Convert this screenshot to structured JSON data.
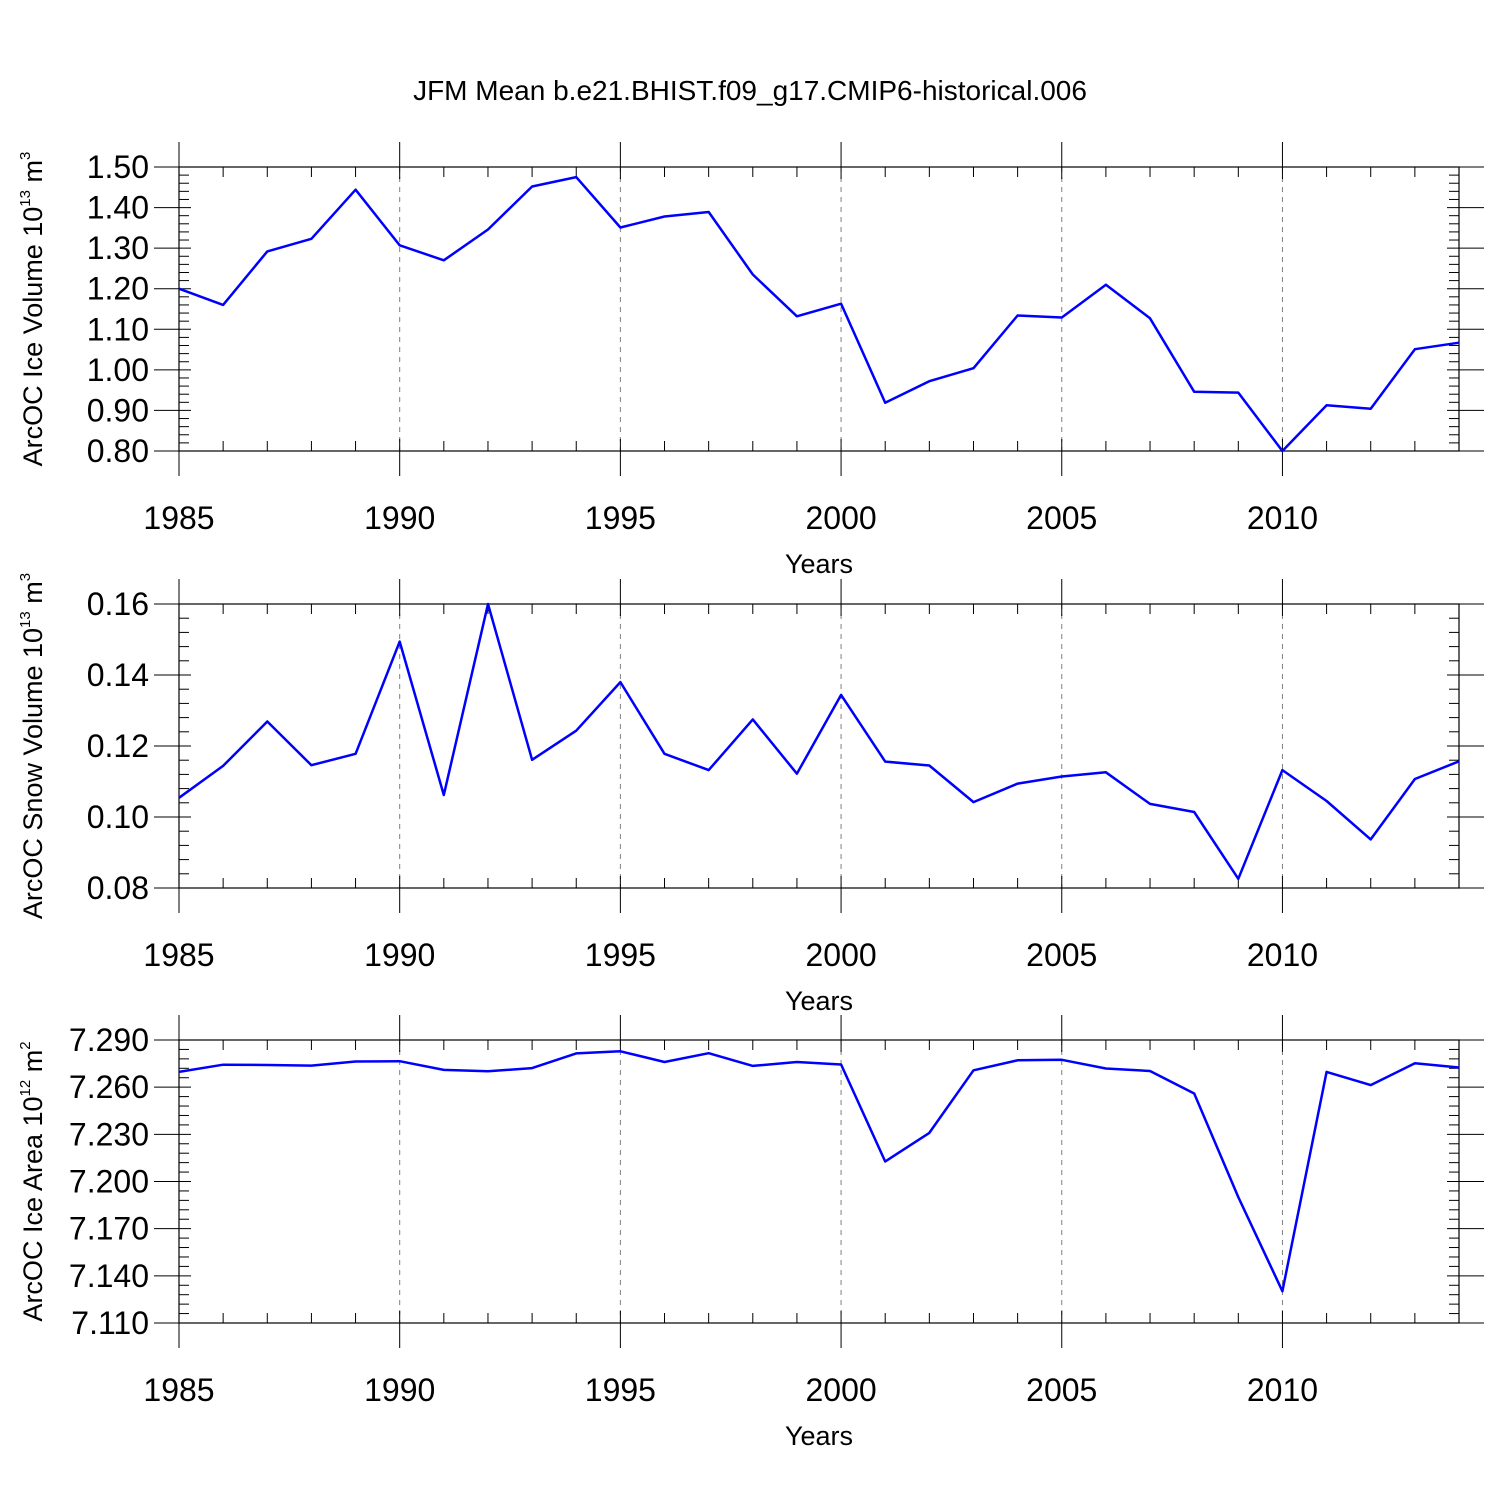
{
  "chart_data": {
    "title": "JFM Mean b.e21.BHIST.f09_g17.CMIP6-historical.006",
    "type": "line",
    "line_color": "#0000ff",
    "grid_color": "#7f7f7f",
    "x": [
      1985,
      1986,
      1987,
      1988,
      1989,
      1990,
      1991,
      1992,
      1993,
      1994,
      1995,
      1996,
      1997,
      1998,
      1999,
      2000,
      2001,
      2002,
      2003,
      2004,
      2005,
      2006,
      2007,
      2008,
      2009,
      2010,
      2011,
      2012,
      2013,
      2014
    ],
    "xlim": [
      1985,
      2014
    ],
    "xticks": [
      1985,
      1990,
      1995,
      2000,
      2005,
      2010
    ],
    "xtick_labels": [
      "1985",
      "1990",
      "1995",
      "2000",
      "2005",
      "2010"
    ],
    "xlabel": "Years",
    "panels": [
      {
        "ylabel": "ArcOC Ice Volume 10",
        "ylabel_exp": "13",
        "ylabel_unit": " m",
        "ylabel_unit_exp": "3",
        "ylim": [
          0.8,
          1.5
        ],
        "yticks": [
          0.8,
          0.9,
          1.0,
          1.1,
          1.2,
          1.3,
          1.4,
          1.5
        ],
        "ytick_labels": [
          "0.80",
          "0.90",
          "1.00",
          "1.10",
          "1.20",
          "1.30",
          "1.40",
          "1.50"
        ],
        "values": [
          1.2,
          1.16,
          1.292,
          1.323,
          1.444,
          1.307,
          1.27,
          1.346,
          1.452,
          1.475,
          1.351,
          1.378,
          1.389,
          1.235,
          1.132,
          1.163,
          0.919,
          0.972,
          1.004,
          1.134,
          1.129,
          1.21,
          1.127,
          0.946,
          0.944,
          0.8,
          0.913,
          0.904,
          1.051,
          1.067
        ]
      },
      {
        "ylabel": "ArcOC Snow Volume 10",
        "ylabel_exp": "13",
        "ylabel_unit": " m",
        "ylabel_unit_exp": "3",
        "ylim": [
          0.08,
          0.16
        ],
        "yticks": [
          0.08,
          0.1,
          0.12,
          0.14,
          0.16
        ],
        "ytick_labels": [
          "0.08",
          "0.10",
          "0.12",
          "0.14",
          "0.16"
        ],
        "values": [
          0.1054,
          0.1144,
          0.1269,
          0.1146,
          0.1178,
          0.1494,
          0.1062,
          0.16,
          0.1161,
          0.1243,
          0.138,
          0.1178,
          0.1132,
          0.1275,
          0.1122,
          0.1344,
          0.1156,
          0.1145,
          0.1042,
          0.1094,
          0.1114,
          0.1126,
          0.1037,
          0.1014,
          0.0826,
          0.1132,
          0.1045,
          0.0937,
          0.1107,
          0.1157
        ]
      },
      {
        "ylabel": "ArcOC Ice Area 10",
        "ylabel_exp": "12",
        "ylabel_unit": " m",
        "ylabel_unit_exp": "2",
        "ylim": [
          7.11,
          7.29
        ],
        "yticks": [
          7.11,
          7.14,
          7.17,
          7.2,
          7.23,
          7.26,
          7.29
        ],
        "ytick_labels": [
          "7.110",
          "7.140",
          "7.170",
          "7.200",
          "7.230",
          "7.260",
          "7.290"
        ],
        "values": [
          7.2697,
          7.2743,
          7.2741,
          7.2737,
          7.2763,
          7.2765,
          7.271,
          7.2701,
          7.2721,
          7.2815,
          7.2828,
          7.276,
          7.2816,
          7.2735,
          7.276,
          7.2744,
          7.2127,
          7.2309,
          7.2707,
          7.2771,
          7.2774,
          7.2719,
          7.2703,
          7.256,
          7.1901,
          7.1302,
          7.2697,
          7.2613,
          7.2752,
          7.2725
        ]
      }
    ]
  }
}
